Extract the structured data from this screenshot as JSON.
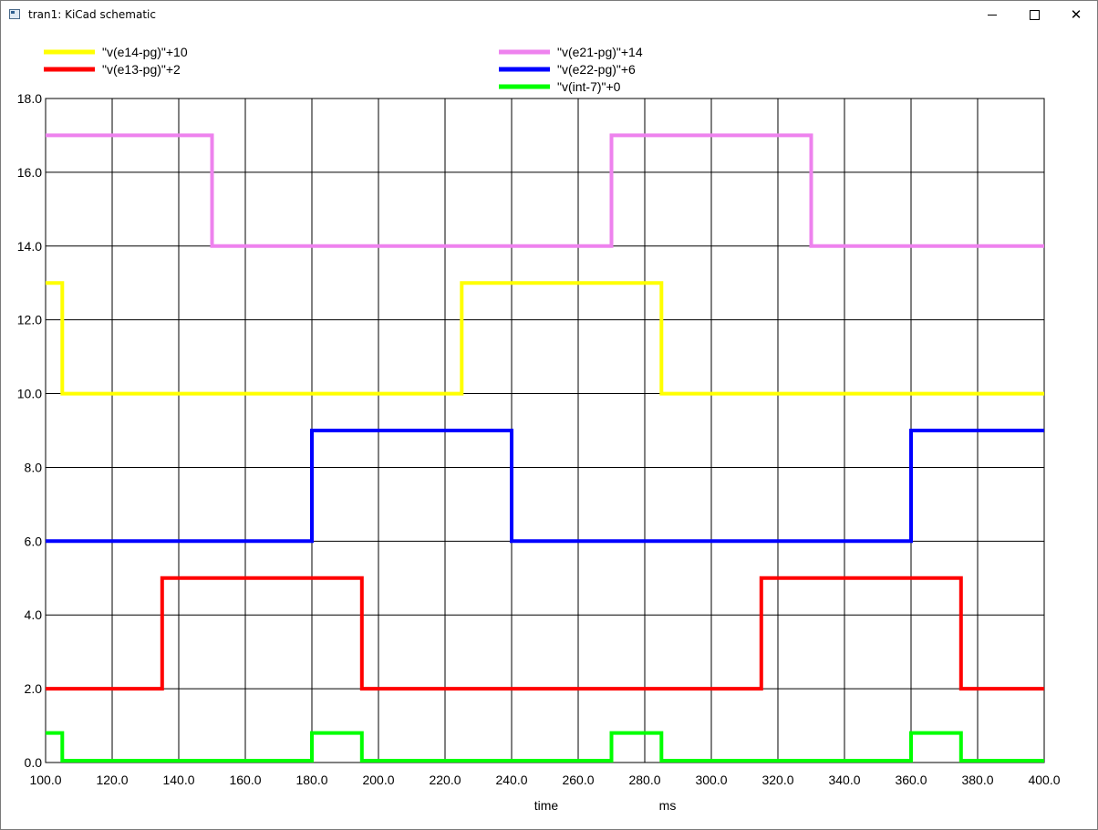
{
  "window": {
    "title": "tran1: KiCad schematic",
    "icon": "app-icon",
    "controls": [
      "minimize-icon",
      "maximize-icon",
      "close-icon"
    ]
  },
  "chart_data": {
    "type": "line",
    "xlabel": "time",
    "xunit": "ms",
    "ylabel": "",
    "xlim": [
      100,
      400
    ],
    "ylim": [
      0,
      18
    ],
    "x_ticks": [
      "100.0",
      "120.0",
      "140.0",
      "160.0",
      "180.0",
      "200.0",
      "220.0",
      "240.0",
      "260.0",
      "280.0",
      "300.0",
      "320.0",
      "340.0",
      "360.0",
      "380.0",
      "400.0"
    ],
    "y_ticks": [
      "0.0",
      "2.0",
      "4.0",
      "6.0",
      "8.0",
      "10.0",
      "12.0",
      "14.0",
      "16.0",
      "18.0"
    ],
    "grid": true,
    "legend_placement": "top",
    "series": [
      {
        "name": "\"v(e14-pg)\"+10",
        "color": "#ffff00",
        "points": [
          [
            100,
            13
          ],
          [
            105,
            13
          ],
          [
            105,
            10
          ],
          [
            225,
            10
          ],
          [
            225,
            13
          ],
          [
            285,
            13
          ],
          [
            285,
            10
          ],
          [
            400,
            10
          ]
        ]
      },
      {
        "name": "\"v(e13-pg)\"+2",
        "color": "#ff0000",
        "points": [
          [
            100,
            2
          ],
          [
            135,
            2
          ],
          [
            135,
            5
          ],
          [
            195,
            5
          ],
          [
            195,
            2
          ],
          [
            315,
            2
          ],
          [
            315,
            5
          ],
          [
            375,
            5
          ],
          [
            375,
            2
          ],
          [
            400,
            2
          ]
        ]
      },
      {
        "name": "\"v(e21-pg)\"+14",
        "color": "#ee82ee",
        "points": [
          [
            100,
            17
          ],
          [
            150,
            17
          ],
          [
            150,
            14
          ],
          [
            270,
            14
          ],
          [
            270,
            17
          ],
          [
            330,
            17
          ],
          [
            330,
            14
          ],
          [
            400,
            14
          ]
        ]
      },
      {
        "name": "\"v(e22-pg)\"+6",
        "color": "#0000ff",
        "points": [
          [
            100,
            6
          ],
          [
            180,
            6
          ],
          [
            180,
            9
          ],
          [
            240,
            9
          ],
          [
            240,
            6
          ],
          [
            360,
            6
          ],
          [
            360,
            9
          ],
          [
            400,
            9
          ]
        ]
      },
      {
        "name": "\"v(int-7)\"+0",
        "color": "#00ff00",
        "points": [
          [
            100,
            0.8
          ],
          [
            105,
            0.8
          ],
          [
            105,
            0.05
          ],
          [
            180,
            0.05
          ],
          [
            180,
            0.8
          ],
          [
            195,
            0.8
          ],
          [
            195,
            0.05
          ],
          [
            270,
            0.05
          ],
          [
            270,
            0.8
          ],
          [
            285,
            0.8
          ],
          [
            285,
            0.05
          ],
          [
            360,
            0.05
          ],
          [
            360,
            0.8
          ],
          [
            375,
            0.8
          ],
          [
            375,
            0.05
          ],
          [
            400,
            0.05
          ]
        ]
      }
    ]
  }
}
